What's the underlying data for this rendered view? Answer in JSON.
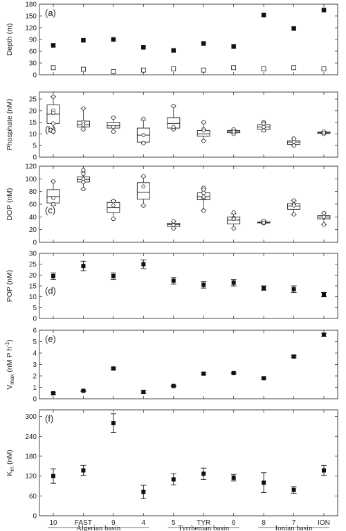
{
  "x_categories": [
    "10",
    "FAST",
    "9",
    "4",
    "5",
    "TYR",
    "6",
    "8",
    "7",
    "ION"
  ],
  "basins": [
    {
      "name": "Algerian basin",
      "from": 0,
      "to": 3
    },
    {
      "name": "Tyrrhenian basin",
      "from": 4,
      "to": 6
    },
    {
      "name": "Ionian basin",
      "from": 7,
      "to": 9
    }
  ],
  "chart_data": [
    {
      "panel": "(a)",
      "type": "scatter",
      "ylabel": "Depth (m)",
      "ylim": [
        0,
        180
      ],
      "yticks": [
        0,
        30,
        60,
        90,
        120,
        150,
        180
      ],
      "series": [
        {
          "marker": "filled-square",
          "values": [
            75,
            88,
            90,
            70,
            62,
            80,
            72,
            152,
            118,
            165
          ]
        },
        {
          "marker": "open-square",
          "values": [
            18,
            14,
            8,
            12,
            15,
            12,
            18,
            15,
            18,
            15
          ]
        }
      ]
    },
    {
      "panel": "(b)",
      "type": "box",
      "ylabel": "Phosphate (nM)",
      "ylim": [
        0,
        28
      ],
      "yticks": [
        0,
        5,
        10,
        15,
        20,
        25
      ],
      "boxes": [
        {
          "lw": 11,
          "q1": 14.5,
          "med": 18.5,
          "q3": 22.5,
          "uw": 26,
          "mean": 19,
          "points": [
            26,
            20,
            14.5,
            11
          ]
        },
        {
          "lw": 12,
          "q1": 13,
          "med": 14,
          "q3": 15.5,
          "uw": 21,
          "mean": 14,
          "points": [
            21,
            15,
            13,
            12
          ]
        },
        {
          "lw": 11,
          "q1": 12.5,
          "med": 13.5,
          "q3": 15,
          "uw": 17,
          "mean": 13,
          "points": [
            17,
            11
          ]
        },
        {
          "lw": 6,
          "q1": 6.5,
          "med": 9.5,
          "q3": 12.5,
          "uw": 16,
          "mean": 9.5,
          "points": [
            16.5,
            6
          ]
        },
        {
          "lw": 12,
          "q1": 12.5,
          "med": 14.5,
          "q3": 17,
          "uw": 22,
          "mean": 13,
          "points": [
            22,
            12.5,
            12
          ]
        },
        {
          "lw": 7,
          "q1": 9,
          "med": 10,
          "q3": 11.5,
          "uw": 15,
          "mean": 11.5,
          "points": [
            15,
            12,
            7
          ]
        },
        {
          "lw": 10,
          "q1": 10.5,
          "med": 11,
          "q3": 11.5,
          "uw": 12,
          "mean": 11,
          "points": [
            12,
            10
          ]
        },
        {
          "lw": 11,
          "q1": 12,
          "med": 13,
          "q3": 14,
          "uw": 15,
          "mean": 13,
          "points": [
            15,
            14.5,
            11.5
          ]
        },
        {
          "lw": 5,
          "q1": 5.5,
          "med": 6.5,
          "q3": 7,
          "uw": 8,
          "mean": 6.5,
          "points": [
            8,
            5
          ]
        },
        {
          "lw": 10,
          "q1": 10.2,
          "med": 10.5,
          "q3": 10.8,
          "uw": 11,
          "mean": 10.5,
          "points": [
            11,
            10
          ]
        }
      ]
    },
    {
      "panel": "(c)",
      "type": "box",
      "ylabel": "DOP (nM)",
      "ylim": [
        0,
        120
      ],
      "yticks": [
        0,
        20,
        40,
        60,
        80,
        100,
        120
      ],
      "boxes": [
        {
          "lw": 58,
          "q1": 62,
          "med": 72,
          "q3": 83,
          "uw": 96,
          "mean": 70,
          "points": [
            96,
            60
          ]
        },
        {
          "lw": 84,
          "q1": 95,
          "med": 99,
          "q3": 103,
          "uw": 111,
          "mean": 100,
          "points": [
            114,
            108,
            95,
            84
          ]
        },
        {
          "lw": 37,
          "q1": 47,
          "med": 55,
          "q3": 63,
          "uw": 66,
          "mean": 58,
          "points": [
            65,
            37
          ]
        },
        {
          "lw": 58,
          "q1": 68,
          "med": 79,
          "q3": 94,
          "uw": 103,
          "mean": 88,
          "points": [
            104,
            58
          ]
        },
        {
          "lw": 22,
          "q1": 25,
          "med": 28,
          "q3": 30,
          "uw": 33,
          "mean": 27,
          "points": [
            33,
            22
          ]
        },
        {
          "lw": 50,
          "q1": 67,
          "med": 72,
          "q3": 78,
          "uw": 84,
          "mean": 72,
          "points": [
            86,
            83,
            78,
            70,
            50
          ]
        },
        {
          "lw": 22,
          "q1": 29,
          "med": 35,
          "q3": 40,
          "uw": 45,
          "mean": 37,
          "points": [
            47,
            38,
            22
          ]
        },
        {
          "lw": 30,
          "q1": 30.5,
          "med": 31,
          "q3": 32,
          "uw": 34,
          "mean": 31,
          "points": [
            34,
            30
          ]
        },
        {
          "lw": 44,
          "q1": 52,
          "med": 57,
          "q3": 61,
          "uw": 66,
          "mean": 58,
          "points": [
            66,
            60,
            44
          ]
        },
        {
          "lw": 28,
          "q1": 37,
          "med": 40,
          "q3": 42,
          "uw": 46,
          "mean": 40,
          "points": [
            46,
            28
          ]
        }
      ]
    },
    {
      "panel": "(d)",
      "type": "scatter",
      "ylabel": "POP (nM)",
      "ylim": [
        0,
        30
      ],
      "yticks": [
        0,
        5,
        10,
        15,
        20,
        25,
        30
      ],
      "values": [
        19.5,
        24.2,
        19.5,
        25,
        17.4,
        15.5,
        16.5,
        14,
        13.5,
        11
      ],
      "errors": [
        1.5,
        2.2,
        1.5,
        2,
        1.5,
        1.5,
        1.5,
        1,
        1.5,
        1
      ]
    },
    {
      "panel": "(e)",
      "type": "scatter",
      "ylabel_main": "V",
      "ylabel_sub": "max",
      "ylabel_unit": " (nM P h",
      "ylabel_sup": "-1",
      "ylabel_close": ")",
      "ylim": [
        0,
        6
      ],
      "yticks": [
        0,
        1,
        2,
        3,
        4,
        5,
        6
      ],
      "values": [
        0.48,
        0.7,
        2.65,
        0.6,
        1.12,
        2.2,
        2.25,
        1.8,
        3.7,
        5.6
      ],
      "errors": [
        0.1,
        0.05,
        0.08,
        0.12,
        0.06,
        0.08,
        0.06,
        0.08,
        0.1,
        0.15
      ]
    },
    {
      "panel": "(f)",
      "type": "scatter",
      "ylabel_main": "K",
      "ylabel_sub": "m",
      "ylabel_unit": " (nM)",
      "ylim": [
        0,
        320
      ],
      "yticks": [
        0,
        60,
        120,
        180,
        240,
        300
      ],
      "values": [
        120,
        137,
        280,
        72,
        110,
        127,
        115,
        100,
        78,
        137
      ],
      "errors": [
        22,
        15,
        28,
        20,
        17,
        17,
        10,
        30,
        10,
        15
      ]
    }
  ]
}
